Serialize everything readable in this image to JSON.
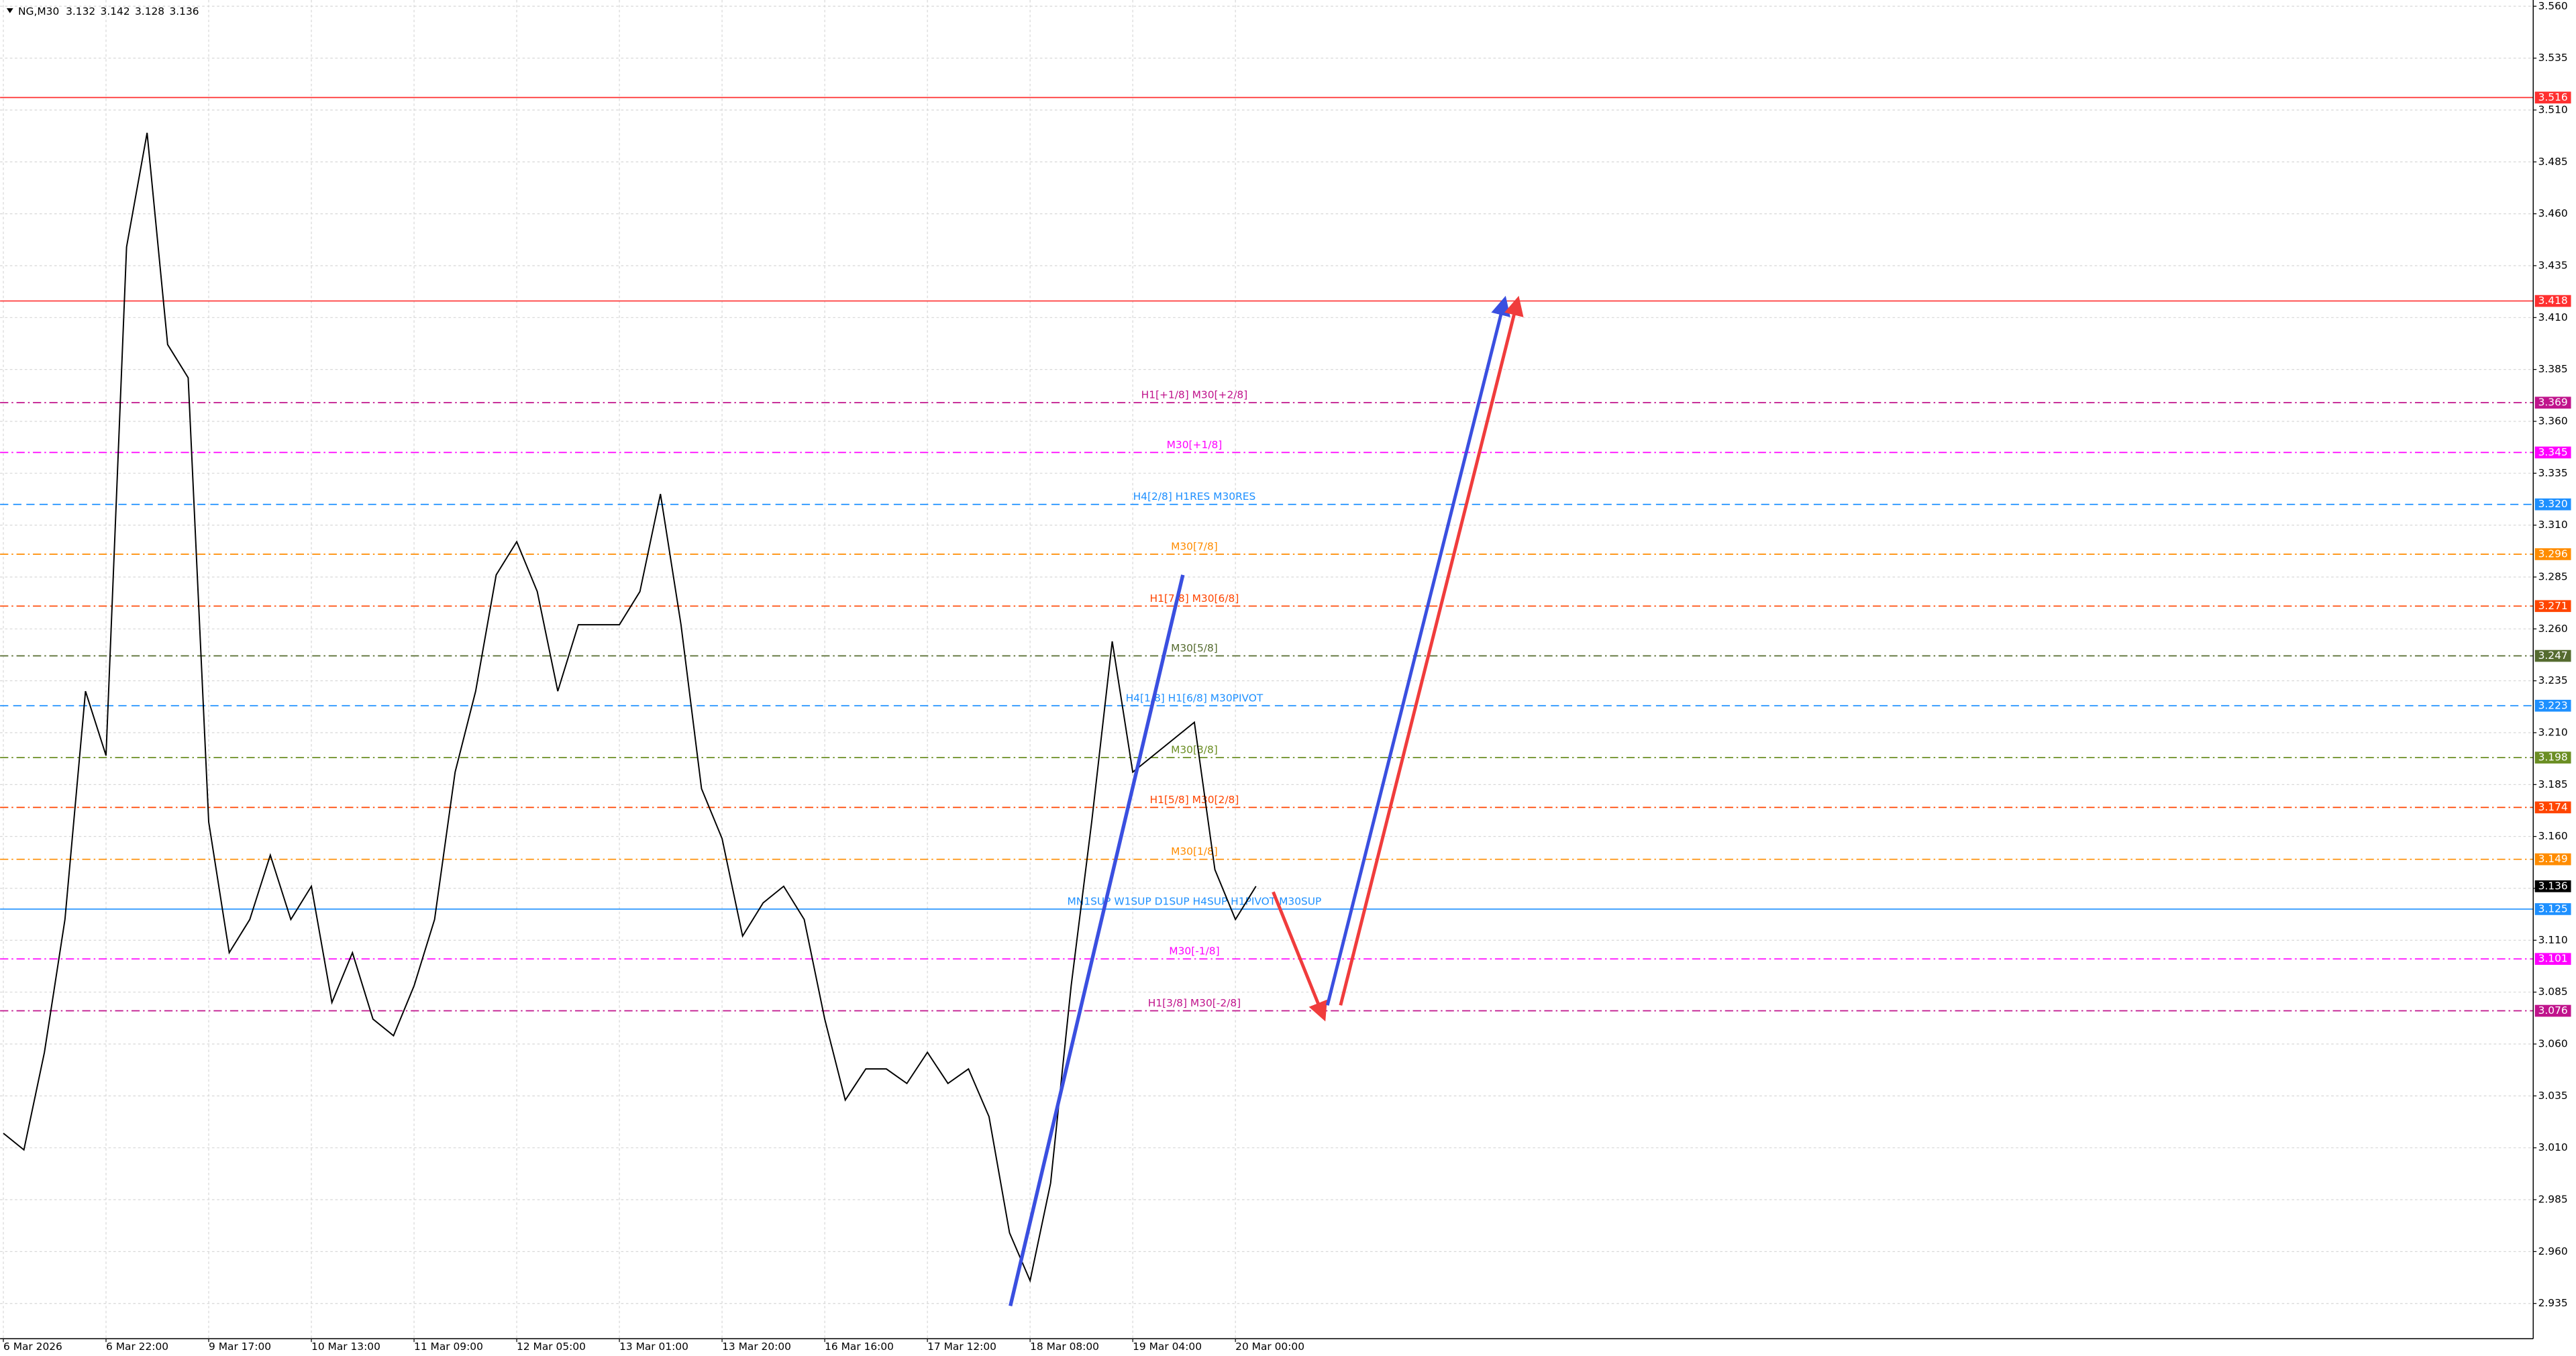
{
  "chart_data": {
    "type": "line",
    "symbol": "NG,M30",
    "ohlc": [
      3.132,
      3.142,
      3.128,
      3.136
    ],
    "categories": [
      "6 Mar 2026",
      null,
      null,
      null,
      null,
      "6 Mar 22:00",
      null,
      null,
      null,
      null,
      "9 Mar 17:00",
      null,
      null,
      null,
      null,
      "10 Mar 13:00",
      null,
      null,
      null,
      null,
      "11 Mar 09:00",
      null,
      null,
      null,
      null,
      "12 Mar 05:00",
      null,
      null,
      null,
      null,
      "13 Mar 01:00",
      null,
      null,
      null,
      null,
      "13 Mar 20:00",
      null,
      null,
      null,
      null,
      "16 Mar 16:00",
      null,
      null,
      null,
      null,
      "17 Mar 12:00",
      null,
      null,
      null,
      null,
      "18 Mar 08:00",
      null,
      null,
      null,
      null,
      "19 Mar 04:00",
      null,
      null,
      null,
      null,
      "20 Mar 00:00",
      null
    ],
    "values": [
      3.017,
      3.009,
      3.056,
      3.12,
      3.23,
      3.199,
      3.444,
      3.499,
      3.397,
      3.381,
      3.167,
      3.104,
      3.12,
      3.151,
      3.12,
      3.136,
      3.08,
      3.104,
      3.072,
      3.064,
      3.088,
      3.12,
      3.191,
      3.23,
      3.286,
      3.302,
      3.278,
      3.23,
      3.262,
      3.262,
      3.262,
      3.278,
      3.325,
      3.262,
      3.183,
      3.159,
      3.112,
      3.128,
      3.136,
      3.12,
      3.072,
      3.033,
      3.048,
      3.048,
      3.041,
      3.056,
      3.041,
      3.048,
      3.025,
      2.969,
      2.946,
      2.993,
      3.088,
      3.167,
      3.254,
      3.191,
      3.199,
      3.207,
      3.215,
      3.144,
      3.12,
      3.136
    ],
    "color": "#000000",
    "current_price": 3.136,
    "ylim": [
      2.918,
      3.563
    ],
    "yticks": [
      2.935,
      {
        "value": 2.96,
        "label": "2.960"
      },
      2.985,
      {
        "value": 3.01,
        "label": "3.010"
      },
      3.035,
      {
        "value": 3.06,
        "label": "3.060"
      },
      3.085,
      {
        "value": 3.11,
        "label": "3.110"
      },
      3.135,
      {
        "value": 3.16,
        "label": "3.160"
      },
      3.185,
      {
        "value": 3.21,
        "label": "3.210"
      },
      3.235,
      {
        "value": 3.26,
        "label": "3.260"
      },
      3.285,
      {
        "value": 3.31,
        "label": "3.310"
      },
      3.335,
      {
        "value": 3.36,
        "label": "3.360"
      },
      3.385,
      {
        "value": 3.41,
        "label": "3.410"
      },
      3.435,
      {
        "value": 3.46,
        "label": "3.460"
      },
      3.485,
      {
        "value": 3.51,
        "label": "3.510"
      },
      3.535,
      {
        "value": 3.56,
        "label": "3.560"
      }
    ],
    "grid": true,
    "levels": [
      {
        "price": 3.516,
        "color": "#ff3030",
        "style": "solid"
      },
      {
        "price": 3.418,
        "color": "#ff3030",
        "style": "solid"
      },
      {
        "price": 3.369,
        "label": "H1[+1/8] M30[+2/8]",
        "color": "#c0148c",
        "style": "dashdot"
      },
      {
        "price": 3.345,
        "label": "M30[+1/8]",
        "color": "#ff00ff",
        "style": "dashdot"
      },
      {
        "price": {
          "value": 3.32,
          "label": "3.320"
        },
        "label": "H4[2/8] H1RES M30RES",
        "color": "#1e90ff",
        "style": "dashed"
      },
      {
        "price": 3.296,
        "label": "M30[7/8]",
        "color": "#ff8c00",
        "style": "dashdot"
      },
      {
        "price": 3.271,
        "label": "H1[7/8] M30[6/8]",
        "color": "#ff4500",
        "style": "dashdot"
      },
      {
        "price": 3.247,
        "label": "M30[5/8]",
        "color": "#556b2f",
        "style": "dashdot"
      },
      {
        "price": 3.223,
        "label": "H4[1/8] H1[6/8] M30PIVOT",
        "color": "#1e90ff",
        "style": "dashed"
      },
      {
        "price": 3.198,
        "label": "M30[3/8]",
        "color": "#6b8e23",
        "style": "dashdot"
      },
      {
        "price": 3.174,
        "label": "H1[5/8] M30[2/8]",
        "color": "#ff4500",
        "style": "dashdot"
      },
      {
        "price": 3.149,
        "label": "M30[1/8]",
        "color": "#ff8c00",
        "style": "dashdot"
      },
      {
        "price": 3.125,
        "label": "MN1SUP W1SUP D1SUP H4SUP H1PIVOT M30SUP",
        "color": "#1e90ff",
        "style": "solid"
      },
      {
        "price": 3.101,
        "label": "M30[-1/8]",
        "color": "#ff00ff",
        "style": "dashdot"
      },
      {
        "price": 3.076,
        "label": "H1[3/8] M30[-2/8]",
        "color": "#c0148c",
        "style": "dashdot"
      }
    ]
  }
}
